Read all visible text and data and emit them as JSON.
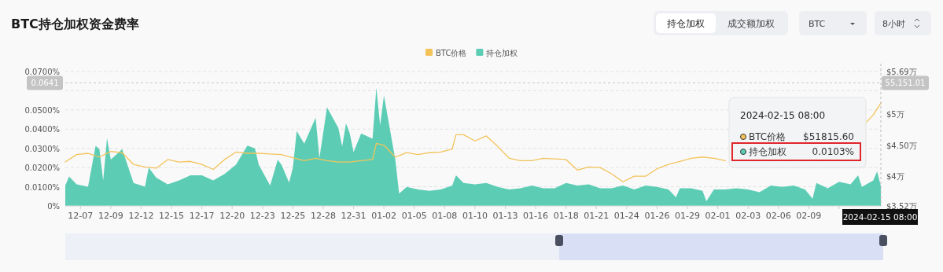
{
  "chart_data": {
    "type": "area",
    "title": "BTC持仓加权资金费率",
    "annotations": [
      "持仓加权",
      "成交额加权",
      "BTC",
      "8小时",
      "2024-02-15 08:00",
      "BTC价格",
      "$51815.60",
      "持仓加权",
      "0.0103%",
      "55,151.01"
    ],
    "legend": "top",
    "grid": "y",
    "xlim": [
      "2023-12-05T16:00",
      "2024-02-15T08:00"
    ],
    "xticks": [
      {
        "value": "2023-12-07T00:00",
        "label": "12-07"
      },
      {
        "value": "2023-12-09T16:00",
        "label": "12-09"
      },
      {
        "value": "2023-12-12T08:00",
        "label": "12-12"
      },
      {
        "value": "2023-12-15T00:00",
        "label": "12-15"
      },
      {
        "value": "2023-12-17T16:00",
        "label": "12-17"
      },
      {
        "value": "2023-12-20T08:00",
        "label": "12-20"
      },
      {
        "value": "2023-12-23T00:00",
        "label": "12-23"
      },
      {
        "value": "2023-12-25T16:00",
        "label": "12-25"
      },
      {
        "value": "2023-12-28T08:00",
        "label": "12-28"
      },
      {
        "value": "2023-12-31T00:00",
        "label": "12-31"
      },
      {
        "value": "2024-01-02T16:00",
        "label": "01-02"
      },
      {
        "value": "2024-01-05T08:00",
        "label": "01-05"
      },
      {
        "value": "2024-01-08T00:00",
        "label": "01-08"
      },
      {
        "value": "2024-01-10T16:00",
        "label": "01-10"
      },
      {
        "value": "2024-01-13T08:00",
        "label": "01-13"
      },
      {
        "value": "2024-01-16T00:00",
        "label": "01-16"
      },
      {
        "value": "2024-01-18T16:00",
        "label": "01-18"
      },
      {
        "value": "2024-01-21T08:00",
        "label": "01-21"
      },
      {
        "value": "2024-01-24T00:00",
        "label": "01-24"
      },
      {
        "value": "2024-01-26T16:00",
        "label": "01-26"
      },
      {
        "value": "2024-01-29T08:00",
        "label": "01-29"
      },
      {
        "value": "2024-02-01T00:00",
        "label": "02-01"
      },
      {
        "value": "2024-02-03T16:00",
        "label": "02-03"
      },
      {
        "value": "2024-02-06T08:00",
        "label": "02-06"
      },
      {
        "value": "2024-02-09T00:00",
        "label": "02-09"
      },
      {
        "value": "2024-02-11T16:00",
        "label": null
      }
    ],
    "ylim": [
      0,
      0.07
    ],
    "yticks": [
      {
        "value": 0,
        "label": "0%"
      },
      {
        "value": 0.01,
        "label": "0.0100%"
      },
      {
        "value": 0.02,
        "label": "0.0200%"
      },
      {
        "value": 0.03,
        "label": "0.0300%"
      },
      {
        "value": 0.04,
        "label": "0.0400%"
      },
      {
        "value": 0.05,
        "label": "0.0500%"
      },
      {
        "value": 0.06,
        "label": null
      },
      {
        "value": 0.07,
        "label": "0.0700%"
      }
    ],
    "y2lim": [
      3.52,
      5.69
    ],
    "y2ticks": [
      {
        "value": 3.52,
        "label": "$3.52万"
      },
      {
        "value": 4,
        "label": "$4万"
      },
      {
        "value": 4.5,
        "label": "$4.50万"
      },
      {
        "value": 5,
        "label": "$5万"
      },
      {
        "value": 5.69,
        "label": "$5.69万"
      }
    ],
    "ref_lines": [
      {
        "axis": "y",
        "value": 0.0641,
        "label": "0.0641"
      },
      {
        "axis": "x",
        "value": "2024-02-15T08:00",
        "label": "2024-02-15 08:00"
      }
    ],
    "series": [
      {
        "name": "BTC价格",
        "type": "line",
        "axis": "y2",
        "color": "#f3c35a",
        "x": [
          "2023-12-05T16:00",
          "2023-12-06T16:00",
          "2023-12-07T16:00",
          "2023-12-08T16:00",
          "2023-12-09T16:00",
          "2023-12-10T16:00",
          "2023-12-11T16:00",
          "2023-12-12T16:00",
          "2023-12-13T16:00",
          "2023-12-14T16:00",
          "2023-12-15T16:00",
          "2023-12-16T16:00",
          "2023-12-17T16:00",
          "2023-12-18T16:00",
          "2023-12-19T16:00",
          "2023-12-20T16:00",
          "2023-12-21T16:00",
          "2023-12-22T16:00",
          "2023-12-23T16:00",
          "2023-12-24T16:00",
          "2023-12-25T16:00",
          "2023-12-26T16:00",
          "2023-12-27T16:00",
          "2023-12-28T16:00",
          "2023-12-29T16:00",
          "2023-12-30T16:00",
          "2023-12-31T16:00",
          "2024-01-01T16:00",
          "2024-01-02T00:00",
          "2024-01-02T16:00",
          "2024-01-03T16:00",
          "2024-01-04T16:00",
          "2024-01-05T16:00",
          "2024-01-06T16:00",
          "2024-01-07T16:00",
          "2024-01-08T16:00",
          "2024-01-09T00:00",
          "2024-01-09T16:00",
          "2024-01-10T16:00",
          "2024-01-11T16:00",
          "2024-01-12T16:00",
          "2024-01-13T16:00",
          "2024-01-14T16:00",
          "2024-01-15T16:00",
          "2024-01-16T16:00",
          "2024-01-17T16:00",
          "2024-01-18T16:00",
          "2024-01-19T16:00",
          "2024-01-20T16:00",
          "2024-01-21T16:00",
          "2024-01-22T16:00",
          "2024-01-23T16:00",
          "2024-01-24T16:00",
          "2024-01-25T16:00",
          "2024-01-26T16:00",
          "2024-01-27T16:00",
          "2024-01-28T16:00",
          "2024-01-29T16:00",
          "2024-01-30T16:00",
          "2024-01-31T16:00",
          "2024-02-01T16:00",
          "2024-02-02T16:00",
          "2024-02-03T16:00",
          "2024-02-04T16:00",
          "2024-02-05T16:00",
          "2024-02-06T16:00",
          "2024-02-07T16:00",
          "2024-02-08T16:00",
          "2024-02-09T16:00",
          "2024-02-10T16:00",
          "2024-02-11T16:00",
          "2024-02-12T16:00",
          "2024-02-13T16:00",
          "2024-02-14T00:00",
          "2024-02-14T16:00",
          "2024-02-15T08:00"
        ],
        "values": [
          4.23,
          4.35,
          4.37,
          4.31,
          4.4,
          4.38,
          4.19,
          4.15,
          4.13,
          4.27,
          4.23,
          4.24,
          4.19,
          4.11,
          4.27,
          4.39,
          4.37,
          4.37,
          4.36,
          4.35,
          4.3,
          4.25,
          4.29,
          4.25,
          4.23,
          4.23,
          4.25,
          4.27,
          4.53,
          4.5,
          4.31,
          4.38,
          4.35,
          4.38,
          4.39,
          4.44,
          4.67,
          4.67,
          4.57,
          4.65,
          4.48,
          4.29,
          4.25,
          4.25,
          4.29,
          4.28,
          4.27,
          4.1,
          4.15,
          4.14,
          4.04,
          3.91,
          4.0,
          4.0,
          4.12,
          4.19,
          4.24,
          4.29,
          4.31,
          4.29,
          4.25,
          null,
          null,
          null,
          null,
          null,
          null,
          null,
          null,
          null,
          null,
          null,
          null,
          4.86,
          4.99,
          5.18
        ]
      },
      {
        "name": "持仓加权",
        "type": "area",
        "color": "#5ccdb4",
        "x": [
          "2023-12-05T16:00",
          "2023-12-06T00:00",
          "2023-12-06T16:00",
          "2023-12-07T16:00",
          "2023-12-08T08:00",
          "2023-12-08T16:00",
          "2023-12-09T00:00",
          "2023-12-09T08:00",
          "2023-12-09T16:00",
          "2023-12-10T16:00",
          "2023-12-11T16:00",
          "2023-12-12T16:00",
          "2023-12-13T00:00",
          "2023-12-13T16:00",
          "2023-12-14T16:00",
          "2023-12-15T16:00",
          "2023-12-16T16:00",
          "2023-12-17T16:00",
          "2023-12-18T16:00",
          "2023-12-19T16:00",
          "2023-12-20T16:00",
          "2023-12-21T16:00",
          "2023-12-22T08:00",
          "2023-12-22T16:00",
          "2023-12-23T16:00",
          "2023-12-24T08:00",
          "2023-12-24T16:00",
          "2023-12-25T08:00",
          "2023-12-25T16:00",
          "2023-12-26T00:00",
          "2023-12-26T16:00",
          "2023-12-27T16:00",
          "2023-12-28T00:00",
          "2023-12-28T16:00",
          "2023-12-29T16:00",
          "2023-12-30T00:00",
          "2023-12-30T08:00",
          "2023-12-30T16:00",
          "2023-12-31T00:00",
          "2023-12-31T16:00",
          "2024-01-01T16:00",
          "2024-01-02T00:00",
          "2024-01-02T08:00",
          "2024-01-02T16:00",
          "2024-01-03T16:00",
          "2024-01-04T00:00",
          "2024-01-04T16:00",
          "2024-01-05T16:00",
          "2024-01-06T16:00",
          "2024-01-07T16:00",
          "2024-01-08T16:00",
          "2024-01-09T00:00",
          "2024-01-09T16:00",
          "2024-01-10T16:00",
          "2024-01-11T16:00",
          "2024-01-12T16:00",
          "2024-01-13T16:00",
          "2024-01-14T16:00",
          "2024-01-15T16:00",
          "2024-01-16T16:00",
          "2024-01-17T16:00",
          "2024-01-18T16:00",
          "2024-01-19T16:00",
          "2024-01-20T16:00",
          "2024-01-21T16:00",
          "2024-01-22T16:00",
          "2024-01-23T16:00",
          "2024-01-24T16:00",
          "2024-01-25T16:00",
          "2024-01-26T16:00",
          "2024-01-27T16:00",
          "2024-01-28T08:00",
          "2024-01-28T16:00",
          "2024-01-29T16:00",
          "2024-01-30T16:00",
          "2024-01-31T00:00",
          "2024-01-31T16:00",
          "2024-02-01T16:00",
          "2024-02-02T16:00",
          "2024-02-03T16:00",
          "2024-02-04T16:00",
          "2024-02-05T16:00",
          "2024-02-06T16:00",
          "2024-02-07T16:00",
          "2024-02-08T16:00",
          "2024-02-09T08:00",
          "2024-02-09T16:00",
          "2024-02-10T16:00",
          "2024-02-11T16:00",
          "2024-02-12T16:00",
          "2024-02-13T08:00",
          "2024-02-13T16:00",
          "2024-02-14T16:00",
          "2024-02-15T00:00",
          "2024-02-15T08:00"
        ],
        "values": [
          0.0106,
          0.0154,
          0.0113,
          0.01,
          0.0313,
          0.0296,
          0.0133,
          0.0353,
          0.0242,
          0.0296,
          0.012,
          0.01,
          0.02,
          0.0147,
          0.0113,
          0.0133,
          0.016,
          0.016,
          0.0133,
          0.0167,
          0.0215,
          0.0314,
          0.03,
          0.0215,
          0.0106,
          0.024,
          0.0215,
          0.0122,
          0.02,
          0.039,
          0.0324,
          0.046,
          0.025,
          0.0514,
          0.0405,
          0.031,
          0.043,
          0.0378,
          0.028,
          0.0378,
          0.035,
          0.0616,
          0.042,
          0.0575,
          0.0242,
          0.0065,
          0.0099,
          0.0086,
          0.0079,
          0.0086,
          0.0106,
          0.016,
          0.012,
          0.0113,
          0.012,
          0.0099,
          0.0086,
          0.0092,
          0.0106,
          0.0092,
          0.0092,
          0.012,
          0.0106,
          0.0113,
          0.0092,
          0.0092,
          0.0106,
          0.0086,
          0.0106,
          0.0099,
          0.0086,
          0.0045,
          0.0092,
          0.0092,
          0.0079,
          0.0025,
          0.0086,
          0.0086,
          0.0092,
          0.0086,
          0.0072,
          0.0106,
          0.0099,
          0.0106,
          0.0086,
          0.0038,
          0.012,
          0.0092,
          0.0126,
          0.0113,
          0.016,
          0.0099,
          0.0133,
          0.018,
          0.0103
        ]
      }
    ]
  }
}
